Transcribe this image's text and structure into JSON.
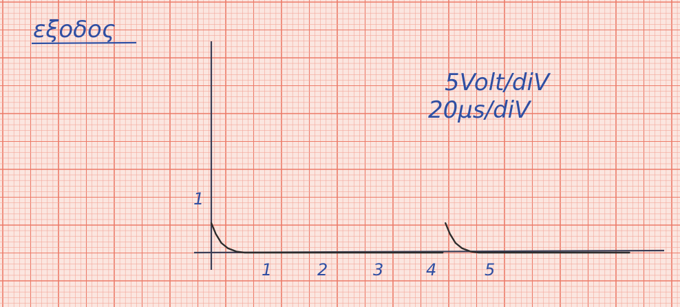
{
  "title": "εξοδος",
  "scale": {
    "volts_per_div": "5Volt/diV",
    "time_per_div": "20μs/diV"
  },
  "axes": {
    "x_tick_labels": [
      "1",
      "2",
      "3",
      "4",
      "5"
    ],
    "y_tick_labels": [
      "1"
    ]
  },
  "chart_data": {
    "type": "line",
    "title": "",
    "xlabel": "",
    "ylabel": "",
    "xlim": [
      0,
      7.5
    ],
    "ylim": [
      0,
      3.5
    ],
    "x_ticks": [
      1,
      2,
      3,
      4,
      5
    ],
    "y_ticks": [
      1
    ],
    "series": [
      {
        "points": [
          [
            0.0,
            0.55
          ],
          [
            0.08,
            0.35
          ],
          [
            0.18,
            0.18
          ],
          [
            0.3,
            0.08
          ],
          [
            0.45,
            0.02
          ],
          [
            0.6,
            0.0
          ],
          [
            4.15,
            0.0
          ]
        ]
      },
      {
        "points": [
          [
            4.2,
            0.55
          ],
          [
            4.28,
            0.35
          ],
          [
            4.38,
            0.18
          ],
          [
            4.5,
            0.08
          ],
          [
            4.65,
            0.02
          ],
          [
            4.8,
            0.0
          ],
          [
            7.5,
            0.0
          ]
        ]
      }
    ],
    "colors": {
      "grid_minor": "#f3a79a",
      "grid_major": "#ec7a68",
      "axis": "#3a3d55",
      "trace": "#2c2c2c",
      "ink": "#2f4fa3"
    }
  }
}
